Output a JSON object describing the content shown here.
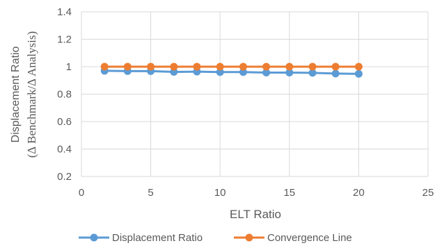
{
  "chart_data": {
    "type": "line",
    "xlabel": "ELT Ratio",
    "ylabel_line1": "Displacement Ratio",
    "ylabel_line2": "(∆ Benchmark/∆ Analysis)",
    "xlim": [
      0,
      25
    ],
    "ylim": [
      0.2,
      1.4
    ],
    "xticks": [
      0,
      5,
      10,
      15,
      20,
      25
    ],
    "yticks": [
      0.2,
      0.4,
      0.6,
      0.8,
      1,
      1.2,
      1.4
    ],
    "ytick_labels": [
      "0.2",
      "0.4",
      "0.6",
      "0.8",
      "1",
      "1.2",
      "1.4"
    ],
    "grid": true,
    "legend_position": "bottom",
    "series": [
      {
        "name": "Displacement Ratio",
        "color": "#5B9BD5",
        "x": [
          1.67,
          3.33,
          5,
          6.67,
          8.33,
          10,
          11.67,
          13.33,
          15,
          16.67,
          18.33,
          20
        ],
        "y": [
          0.97,
          0.968,
          0.968,
          0.962,
          0.964,
          0.961,
          0.961,
          0.957,
          0.957,
          0.955,
          0.95,
          0.948
        ]
      },
      {
        "name": "Convergence Line",
        "color": "#ED7D31",
        "x": [
          1.67,
          3.33,
          5,
          6.67,
          8.33,
          10,
          11.67,
          13.33,
          15,
          16.67,
          18.33,
          20
        ],
        "y": [
          1,
          1,
          1,
          1,
          1,
          1,
          1,
          1,
          1,
          1,
          1,
          1
        ]
      }
    ],
    "gridline_color": "#D9D9D9"
  }
}
